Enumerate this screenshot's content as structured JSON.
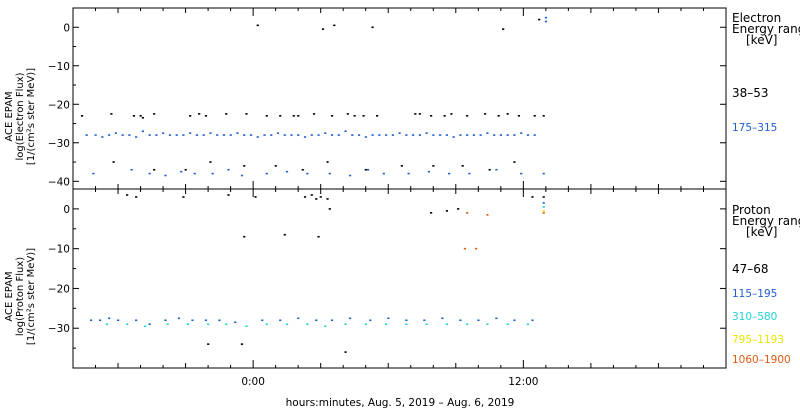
{
  "colors": {
    "black": "#000000",
    "blue": "#1f5fd0",
    "cyan": "#22d2d6",
    "yellow": "#e6e600",
    "orange": "#e05a12"
  },
  "chart_data": [
    {
      "type": "scatter",
      "ylabel_lines": [
        "ACE EPAM",
        "log(Electron Flux)",
        "[1/(cm²s ster MeV)]"
      ],
      "ylim": [
        -42,
        5
      ],
      "yticks": [
        0,
        -10,
        -20,
        -30,
        -40
      ],
      "ytick_labels": [
        "0",
        "−10",
        "−20",
        "−30",
        "−40"
      ],
      "legend_title_lines": [
        "Electron",
        "Energy ranges",
        "[keV]"
      ],
      "series": [
        {
          "name": "38–53",
          "color": "#000000",
          "x": [
            -7.6,
            -6.3,
            -5.3,
            -5.0,
            -4.9,
            -4.4,
            -2.8,
            -2.4,
            -2.1,
            -1.2,
            -0.3,
            0.6,
            1.2,
            1.8,
            2.0,
            2.7,
            3.5,
            4.2,
            4.5,
            4.9,
            5.5,
            7.2,
            7.4,
            7.9,
            8.5,
            8.8,
            9.5,
            10.3,
            10.9,
            11.3,
            11.8,
            12.5,
            12.9,
            -6.2,
            -4.4,
            -3.0,
            -1.9,
            -0.4,
            1.0,
            2.2,
            3.3,
            5.0,
            6.6,
            8.0,
            9.3,
            10.5,
            11.6,
            0.2,
            3.1,
            3.6,
            5.3,
            11.1,
            12.7
          ],
          "y": [
            -23,
            -22.5,
            -23,
            -23,
            -23.5,
            -22.5,
            -23,
            -22.5,
            -23,
            -22.5,
            -22.5,
            -23,
            -23,
            -23,
            -23,
            -22.5,
            -23,
            -22.5,
            -23,
            -23,
            -23,
            -22.5,
            -22.5,
            -23,
            -23,
            -22.5,
            -23,
            -22.5,
            -23,
            -22.5,
            -23,
            -23,
            -23,
            -35,
            -37,
            -37,
            -35,
            -36,
            -36,
            -37,
            -35,
            -37,
            -36,
            -36,
            -36,
            -37,
            -35,
            0.5,
            -0.5,
            0.5,
            0,
            -0.5,
            2
          ]
        },
        {
          "name": "175–315",
          "color": "#1f5fd0",
          "x": [
            -7.4,
            -7.0,
            -6.7,
            -6.4,
            -6.1,
            -5.8,
            -5.5,
            -5.2,
            -4.9,
            -4.6,
            -4.3,
            -4.0,
            -3.7,
            -3.4,
            -3.1,
            -2.8,
            -2.5,
            -2.2,
            -1.9,
            -1.6,
            -1.3,
            -1.0,
            -0.7,
            -0.4,
            -0.1,
            0.2,
            0.5,
            0.8,
            1.1,
            1.4,
            1.7,
            2.0,
            2.3,
            2.6,
            2.9,
            3.2,
            3.5,
            3.8,
            4.1,
            4.4,
            4.7,
            5.0,
            5.3,
            5.6,
            5.9,
            6.2,
            6.5,
            6.8,
            7.1,
            7.4,
            7.7,
            8.0,
            8.3,
            8.6,
            8.9,
            9.2,
            9.5,
            9.8,
            10.1,
            10.4,
            10.7,
            11.0,
            11.3,
            11.6,
            11.9,
            12.2,
            12.5,
            -7.1,
            -5.4,
            -4.6,
            -3.9,
            -3.2,
            -2.6,
            -1.8,
            -1.1,
            -0.5,
            0.6,
            1.5,
            2.4,
            3.4,
            4.3,
            5.1,
            5.8,
            6.9,
            7.8,
            8.7,
            9.6,
            10.8,
            11.9,
            12.9
          ],
          "y": [
            -28,
            -28,
            -28.5,
            -28,
            -27.5,
            -28,
            -28,
            -28.5,
            -27,
            -28,
            -28,
            -27.5,
            -28,
            -28,
            -28,
            -27.5,
            -28,
            -28,
            -27.5,
            -28,
            -28,
            -28,
            -27.5,
            -28,
            -28,
            -28.5,
            -28,
            -28,
            -27.5,
            -28,
            -28,
            -28,
            -28.5,
            -28,
            -28,
            -27.5,
            -28,
            -28,
            -27,
            -28,
            -28,
            -28.5,
            -28,
            -28,
            -28,
            -28,
            -27.5,
            -28,
            -28,
            -28,
            -27.5,
            -28,
            -28,
            -28,
            -28.5,
            -28,
            -28,
            -28,
            -28,
            -27.5,
            -28,
            -28,
            -28,
            -28,
            -27.5,
            -28,
            -28,
            -38,
            -37,
            -38,
            -38.5,
            -37.5,
            -38,
            -38,
            -37,
            -38.5,
            -38,
            -37.5,
            -38,
            -38,
            -38.5,
            -37,
            -38,
            -38,
            -37.5,
            -38,
            -38,
            -37,
            -38,
            -38
          ],
          "extra_x": [
            13.0,
            13.0
          ],
          "extra_y": [
            2.5,
            1.5
          ]
        }
      ]
    },
    {
      "type": "scatter",
      "ylabel_lines": [
        "ACE EPAM",
        "log(Proton Flux)",
        "[1/(cm²s ster MeV)]"
      ],
      "ylim": [
        -40,
        5
      ],
      "yticks": [
        0,
        -10,
        -20,
        -30
      ],
      "ytick_labels": [
        "0",
        "−10",
        "−20",
        "−30"
      ],
      "legend_title_lines": [
        "Proton",
        "Energy ranges",
        "[keV]"
      ],
      "series": [
        {
          "name": "47–68",
          "color": "#000000",
          "x": [
            -5.6,
            -5.2,
            -3.1,
            -1.1,
            -0.4,
            0.1,
            1.4,
            2.3,
            2.6,
            2.8,
            3.0,
            3.3,
            3.4,
            7.9,
            8.6,
            9.1,
            12.9,
            2.9,
            -0.5,
            -2.0,
            4.1,
            12.4
          ],
          "y": [
            3.5,
            3,
            3,
            3.5,
            -7,
            3,
            -6.5,
            3,
            3.5,
            2.5,
            3,
            2.5,
            0,
            -1,
            -0.5,
            0,
            3,
            -7,
            -34,
            -34,
            -36,
            3
          ]
        },
        {
          "name": "115–195",
          "color": "#1f5fd0",
          "x": [
            -7.2,
            -6.8,
            -6.4,
            -6.0,
            -5.2,
            -4.6,
            -3.9,
            -3.3,
            -2.7,
            -2.1,
            -1.5,
            -0.8,
            0.4,
            1.2,
            2.0,
            2.8,
            3.5,
            4.3,
            5.2,
            6.0,
            6.8,
            7.6,
            8.4,
            9.2,
            10.0,
            10.8,
            11.6,
            12.4,
            12.9
          ],
          "y": [
            -28,
            -28,
            -27.5,
            -28,
            -28,
            -29,
            -28,
            -27.5,
            -28,
            -28,
            -28,
            -28.5,
            -28,
            -28,
            -27.5,
            -28,
            -28,
            -27.5,
            -28,
            -27.5,
            -28,
            -28,
            -27.5,
            -28,
            -28,
            -27.5,
            -28,
            -28,
            1.5
          ]
        },
        {
          "name": "310–580",
          "color": "#22d2d6",
          "x": [
            -6.5,
            -5.6,
            -4.8,
            -3.8,
            -2.9,
            -2.0,
            -1.2,
            -0.3,
            0.6,
            1.5,
            2.4,
            3.2,
            4.1,
            5.0,
            5.9,
            6.8,
            7.7,
            8.6,
            9.5,
            10.4,
            11.3,
            12.2,
            12.9
          ],
          "y": [
            -29,
            -29,
            -29.5,
            -29,
            -29,
            -29,
            -29,
            -29.5,
            -29,
            -29,
            -29,
            -29.5,
            -29,
            -29,
            -29,
            -29,
            -29,
            -29,
            -29,
            -29,
            -29,
            -29,
            0.5
          ]
        },
        {
          "name": "795–1193",
          "color": "#e6e600",
          "x": [
            12.9
          ],
          "y": [
            -0.5
          ]
        },
        {
          "name": "1060–1900",
          "color": "#e05a12",
          "x": [
            9.5,
            10.4,
            9.4,
            9.9,
            12.9
          ],
          "y": [
            -1,
            -1.5,
            -10,
            -10,
            -1
          ]
        }
      ]
    }
  ],
  "x_axis": {
    "range_hours": [
      -8,
      21
    ],
    "major_ticks": [
      0,
      12
    ],
    "major_tick_labels": [
      "0:00",
      "12:00"
    ],
    "title": "hours:minutes, Aug.  5, 2019 – Aug.  6, 2019"
  }
}
